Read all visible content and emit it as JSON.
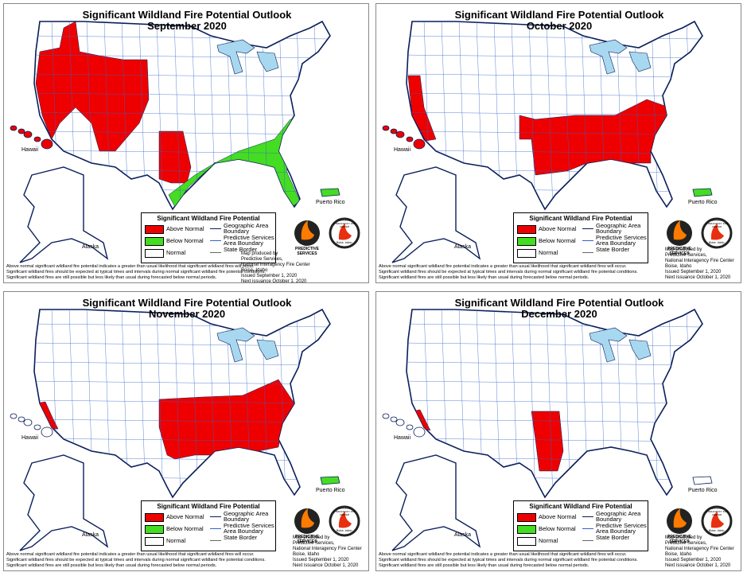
{
  "panels": [
    {
      "title": "Significant Wildland Fire Potential Outlook",
      "month": "September 2020"
    },
    {
      "title": "Significant Wildland Fire Potential Outlook",
      "month": "October 2020"
    },
    {
      "title": "Significant Wildland Fire Potential Outlook",
      "month": "November 2020"
    },
    {
      "title": "Significant Wildland Fire Potential Outlook",
      "month": "December 2020"
    }
  ],
  "labels": {
    "hawaii": "Hawaii",
    "alaska": "Alaska",
    "puerto_rico": "Puerto Rico"
  },
  "legend": {
    "title": "Significant Wildland Fire Potential",
    "items": [
      "Above Normal",
      "Below Normal",
      "Normal"
    ],
    "lines": [
      "Geographic Area Boundary",
      "Predictive Services Area Boundary",
      "State Border"
    ]
  },
  "logos": {
    "predictive": "PREDICTIVE SERVICES",
    "nifc": "NATIONAL INTERAGENCY FIRE CENTER",
    "nifc_city": "Boise, Idaho"
  },
  "footnote": [
    "Above normal significant wildland fire potential indicates a greater than usual likelihood that significant wildland fires will occur.",
    "Significant wildland fires should be expected at typical times and intervals during normal significant wildland fire potential conditions.",
    "Significant wildland fires are still possible but less likely than usual during forecasted below normal periods."
  ],
  "credit": [
    "Map produced by",
    "Predictive Services,",
    "National Interagency Fire Center",
    "Boise, Idaho",
    "Issued September 1, 2020",
    "Next issuance October 1, 2020"
  ]
}
